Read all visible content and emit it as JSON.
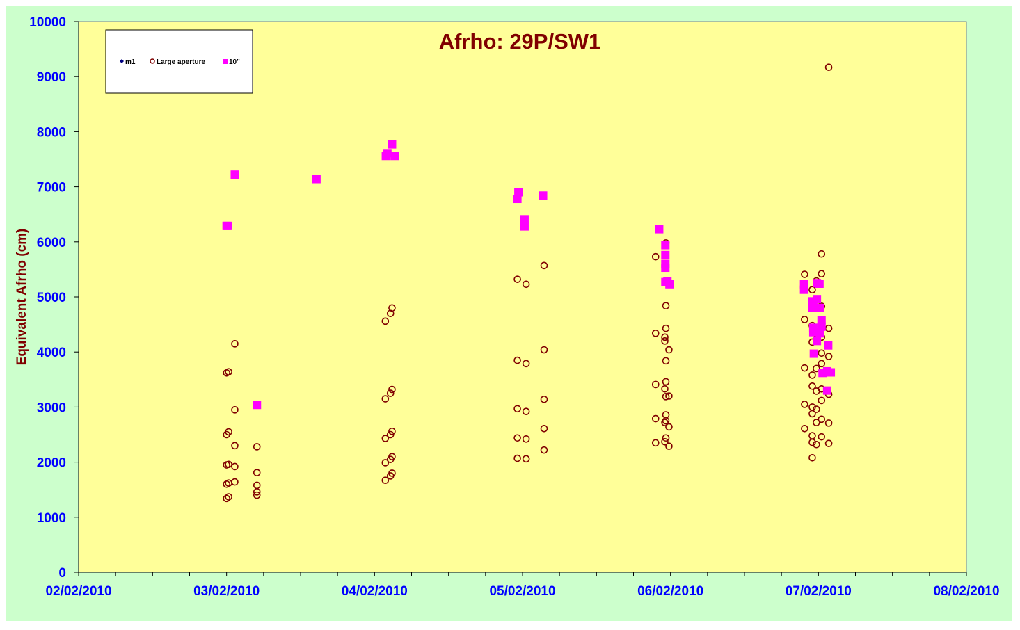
{
  "colors": {
    "outer_bg": "#ccffcc",
    "plot_bg": "#ffff99",
    "title": "#800000",
    "axis_label": "#800000",
    "tick_label": "#0000ff",
    "m1": "#000080",
    "large_aperture": "#800000",
    "ten_inch": "#ff00ff"
  },
  "chart_data": {
    "type": "scatter",
    "title": "Afrho: 29P/SW1",
    "xlabel": "",
    "ylabel": "Equivalent  Afrho (cm)",
    "x_axis": "date",
    "xlim": [
      "02/02/2010",
      "08/02/2010"
    ],
    "ylim": [
      0,
      10000
    ],
    "x_ticks": [
      "02/02/2010",
      "03/02/2010",
      "04/02/2010",
      "05/02/2010",
      "06/02/2010",
      "07/02/2010",
      "08/02/2010"
    ],
    "y_ticks": [
      "0",
      "1000",
      "2000",
      "3000",
      "4000",
      "5000",
      "6000",
      "7000",
      "8000",
      "9000",
      "10000"
    ],
    "grid": false,
    "legend_position": "top-left",
    "series": [
      {
        "name": "m1",
        "marker": "diamond",
        "points": []
      },
      {
        "name": "Large aperture",
        "marker": "circle-open",
        "points": [
          [
            "03/02/2010 00:00",
            1340
          ],
          [
            "03/02/2010 00:00",
            1600
          ],
          [
            "03/02/2010 00:00",
            1950
          ],
          [
            "03/02/2010 00:00",
            2500
          ],
          [
            "03/02/2010 00:00",
            3620
          ],
          [
            "03/02/2010 00:20",
            1370
          ],
          [
            "03/02/2010 00:20",
            1620
          ],
          [
            "03/02/2010 00:20",
            1960
          ],
          [
            "03/02/2010 00:20",
            2550
          ],
          [
            "03/02/2010 00:20",
            3640
          ],
          [
            "03/02/2010 01:20",
            1640
          ],
          [
            "03/02/2010 01:20",
            1920
          ],
          [
            "03/02/2010 01:20",
            2300
          ],
          [
            "03/02/2010 01:20",
            2950
          ],
          [
            "03/02/2010 01:20",
            4150
          ],
          [
            "03/02/2010 04:55",
            1400
          ],
          [
            "03/02/2010 04:55",
            1460
          ],
          [
            "03/02/2010 04:55",
            1580
          ],
          [
            "03/02/2010 04:55",
            1810
          ],
          [
            "03/02/2010 04:55",
            2280
          ],
          [
            "04/02/2010 01:45",
            1670
          ],
          [
            "04/02/2010 01:45",
            1990
          ],
          [
            "04/02/2010 01:45",
            2430
          ],
          [
            "04/02/2010 01:45",
            3150
          ],
          [
            "04/02/2010 01:45",
            4560
          ],
          [
            "04/02/2010 02:35",
            1750
          ],
          [
            "04/02/2010 02:35",
            2050
          ],
          [
            "04/02/2010 02:35",
            2500
          ],
          [
            "04/02/2010 02:35",
            3250
          ],
          [
            "04/02/2010 02:35",
            4700
          ],
          [
            "04/02/2010 02:50",
            1800
          ],
          [
            "04/02/2010 02:50",
            2100
          ],
          [
            "04/02/2010 02:50",
            2560
          ],
          [
            "04/02/2010 02:50",
            3320
          ],
          [
            "04/02/2010 02:50",
            4800
          ],
          [
            "04/02/2010 23:10",
            2070
          ],
          [
            "04/02/2010 23:10",
            2440
          ],
          [
            "04/02/2010 23:10",
            2970
          ],
          [
            "04/02/2010 23:10",
            3850
          ],
          [
            "04/02/2010 23:10",
            5320
          ],
          [
            "05/02/2010 00:35",
            2060
          ],
          [
            "05/02/2010 00:35",
            2420
          ],
          [
            "05/02/2010 00:35",
            2920
          ],
          [
            "05/02/2010 00:35",
            3790
          ],
          [
            "05/02/2010 00:35",
            5230
          ],
          [
            "05/02/2010 03:30",
            2220
          ],
          [
            "05/02/2010 03:30",
            2610
          ],
          [
            "05/02/2010 03:30",
            3140
          ],
          [
            "05/02/2010 03:30",
            4040
          ],
          [
            "05/02/2010 03:30",
            5570
          ],
          [
            "05/02/2010 21:35",
            2350
          ],
          [
            "05/02/2010 21:35",
            2790
          ],
          [
            "05/02/2010 21:35",
            3410
          ],
          [
            "05/02/2010 21:35",
            4340
          ],
          [
            "05/02/2010 21:35",
            5730
          ],
          [
            "05/02/2010 23:05",
            2370
          ],
          [
            "05/02/2010 23:05",
            2720
          ],
          [
            "05/02/2010 23:05",
            3330
          ],
          [
            "05/02/2010 23:05",
            4270
          ],
          [
            "05/02/2010 23:05",
            4200
          ],
          [
            "05/02/2010 23:15",
            2440
          ],
          [
            "05/02/2010 23:15",
            2750
          ],
          [
            "05/02/2010 23:15",
            2860
          ],
          [
            "05/02/2010 23:15",
            3190
          ],
          [
            "05/02/2010 23:15",
            3460
          ],
          [
            "05/02/2010 23:15",
            3840
          ],
          [
            "05/02/2010 23:15",
            4430
          ],
          [
            "05/02/2010 23:15",
            4840
          ],
          [
            "05/02/2010 23:15",
            5260
          ],
          [
            "05/02/2010 23:15",
            5980
          ],
          [
            "05/02/2010 23:45",
            2290
          ],
          [
            "05/02/2010 23:45",
            2640
          ],
          [
            "05/02/2010 23:45",
            3200
          ],
          [
            "05/02/2010 23:45",
            4040
          ],
          [
            "06/02/2010 21:45",
            2610
          ],
          [
            "06/02/2010 21:45",
            3050
          ],
          [
            "06/02/2010 21:45",
            3710
          ],
          [
            "06/02/2010 21:45",
            4590
          ],
          [
            "06/02/2010 21:45",
            5410
          ],
          [
            "06/02/2010 23:00",
            2080
          ],
          [
            "06/02/2010 23:00",
            2360
          ],
          [
            "06/02/2010 23:00",
            2480
          ],
          [
            "06/02/2010 23:00",
            2880
          ],
          [
            "06/02/2010 23:00",
            3000
          ],
          [
            "06/02/2010 23:00",
            3380
          ],
          [
            "06/02/2010 23:00",
            3580
          ],
          [
            "06/02/2010 23:00",
            4180
          ],
          [
            "06/02/2010 23:00",
            4480
          ],
          [
            "06/02/2010 23:00",
            5130
          ],
          [
            "06/02/2010 23:40",
            2320
          ],
          [
            "06/02/2010 23:40",
            2720
          ],
          [
            "06/02/2010 23:40",
            2960
          ],
          [
            "06/02/2010 23:40",
            3290
          ],
          [
            "06/02/2010 23:40",
            3700
          ],
          [
            "06/02/2010 23:40",
            4330
          ],
          [
            "06/02/2010 23:40",
            4860
          ],
          [
            "06/02/2010 23:40",
            5290
          ],
          [
            "07/02/2010 00:30",
            2460
          ],
          [
            "07/02/2010 00:30",
            2780
          ],
          [
            "07/02/2010 00:30",
            3120
          ],
          [
            "07/02/2010 00:30",
            3330
          ],
          [
            "07/02/2010 00:30",
            3790
          ],
          [
            "07/02/2010 00:30",
            3980
          ],
          [
            "07/02/2010 00:30",
            4270
          ],
          [
            "07/02/2010 00:30",
            4830
          ],
          [
            "07/02/2010 00:30",
            5420
          ],
          [
            "07/02/2010 00:30",
            5780
          ],
          [
            "07/02/2010 01:40",
            2340
          ],
          [
            "07/02/2010 01:40",
            2710
          ],
          [
            "07/02/2010 01:40",
            3230
          ],
          [
            "07/02/2010 01:40",
            3920
          ],
          [
            "07/02/2010 01:40",
            4430
          ],
          [
            "07/02/2010 01:40",
            9170
          ]
        ]
      },
      {
        "name": "10\"",
        "marker": "square",
        "points": [
          [
            "03/02/2010 00:00",
            6290
          ],
          [
            "03/02/2010 00:10",
            6290
          ],
          [
            "03/02/2010 01:20",
            7220
          ],
          [
            "03/02/2010 04:55",
            3040
          ],
          [
            "03/02/2010 14:35",
            7140
          ],
          [
            "04/02/2010 01:50",
            7560
          ],
          [
            "04/02/2010 02:05",
            7610
          ],
          [
            "04/02/2010 02:50",
            7770
          ],
          [
            "04/02/2010 03:15",
            7560
          ],
          [
            "04/02/2010 23:10",
            6780
          ],
          [
            "04/02/2010 23:20",
            6900
          ],
          [
            "05/02/2010 00:20",
            6280
          ],
          [
            "05/02/2010 00:20",
            6410
          ],
          [
            "05/02/2010 03:20",
            6840
          ],
          [
            "05/02/2010 22:10",
            6230
          ],
          [
            "05/02/2010 23:10",
            5940
          ],
          [
            "05/02/2010 23:10",
            5760
          ],
          [
            "05/02/2010 23:10",
            5600
          ],
          [
            "05/02/2010 23:10",
            5530
          ],
          [
            "05/02/2010 23:10",
            5270
          ],
          [
            "05/02/2010 23:30",
            5280
          ],
          [
            "05/02/2010 23:50",
            5230
          ],
          [
            "06/02/2010 21:40",
            5230
          ],
          [
            "06/02/2010 21:40",
            5130
          ],
          [
            "06/02/2010 23:00",
            4920
          ],
          [
            "06/02/2010 23:00",
            4810
          ],
          [
            "06/02/2010 23:10",
            4860
          ],
          [
            "06/02/2010 23:10",
            4440
          ],
          [
            "06/02/2010 23:10",
            4360
          ],
          [
            "06/02/2010 23:15",
            3970
          ],
          [
            "06/02/2010 23:45",
            4960
          ],
          [
            "06/02/2010 23:45",
            4200
          ],
          [
            "06/02/2010 23:45",
            5250
          ],
          [
            "07/02/2010 00:10",
            5240
          ],
          [
            "07/02/2010 00:15",
            4800
          ],
          [
            "07/02/2010 00:30",
            4580
          ],
          [
            "07/02/2010 00:30",
            4460
          ],
          [
            "07/02/2010 00:15",
            4340
          ],
          [
            "07/02/2010 00:40",
            3620
          ],
          [
            "07/02/2010 01:25",
            3650
          ],
          [
            "07/02/2010 01:25",
            3300
          ],
          [
            "07/02/2010 01:35",
            4120
          ],
          [
            "07/02/2010 02:00",
            3630
          ]
        ]
      }
    ]
  }
}
